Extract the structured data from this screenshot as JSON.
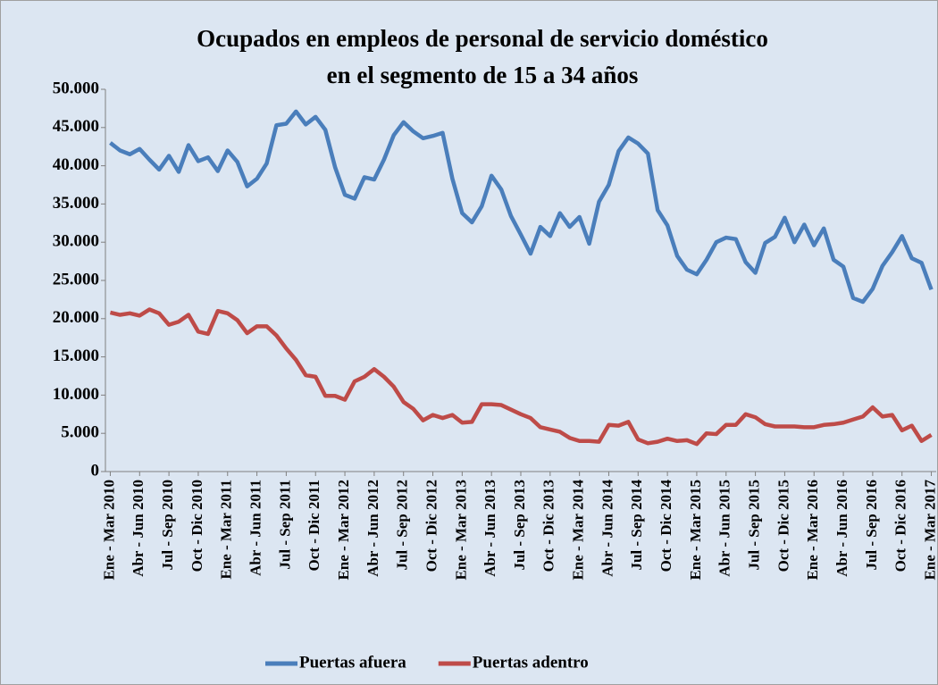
{
  "chart_data": {
    "type": "line",
    "title": [
      "Ocupados en empleos de personal de servicio doméstico",
      "en el segmento de 15 a 34 años"
    ],
    "categories": [
      "Ene - Mar 2010",
      null,
      null,
      "Abr - Jun 2010",
      null,
      null,
      "Jul - Sep 2010",
      null,
      null,
      "Oct - Dic 2010",
      null,
      null,
      "Ene - Mar 2011",
      null,
      null,
      "Abr - Jun 2011",
      null,
      null,
      "Jul - Sep 2011",
      null,
      null,
      "Oct - Dic 2011",
      null,
      null,
      "Ene - Mar 2012",
      null,
      null,
      "Abr - Jun 2012",
      null,
      null,
      "Jul - Sep 2012",
      null,
      null,
      "Oct - Dic 2012",
      null,
      null,
      "Ene - Mar 2013",
      null,
      null,
      "Abr - Jun 2013",
      null,
      null,
      "Jul - Sep 2013",
      null,
      null,
      "Oct - Dic 2013",
      null,
      null,
      "Ene - Mar 2014",
      null,
      null,
      "Abr - Jun 2014",
      null,
      null,
      "Jul - Sep 2014",
      null,
      null,
      "Oct - Dic 2014",
      null,
      null,
      "Ene - Mar 2015",
      null,
      null,
      "Abr - Jun 2015",
      null,
      null,
      "Jul - Sep 2015",
      null,
      null,
      "Oct - Dic 2015",
      null,
      null,
      "Ene - Mar 2016",
      null,
      null,
      "Abr - Jun 2016",
      null,
      null,
      "Jul - Sep 2016",
      null,
      null,
      "Oct - Dic 2016",
      null,
      null,
      "Ene - Mar 2017"
    ],
    "series": [
      {
        "name": "Puertas afuera",
        "color": "#4a7ebb",
        "values": [
          43000,
          42000,
          41500,
          42200,
          40800,
          39500,
          41300,
          39200,
          42700,
          40600,
          41100,
          39300,
          42000,
          40500,
          37300,
          38300,
          40300,
          45300,
          45500,
          47100,
          45400,
          46400,
          44700,
          39800,
          36200,
          35700,
          38500,
          38200,
          40800,
          44000,
          45700,
          44500,
          43600,
          43900,
          44300,
          38300,
          33800,
          32600,
          34700,
          38700,
          36900,
          33400,
          31000,
          28500,
          32000,
          30800,
          33800,
          32000,
          33300,
          29800,
          35300,
          37500,
          41900,
          43700,
          42900,
          41600,
          34200,
          32200,
          28200,
          26400,
          25800,
          27700,
          30000,
          30600,
          30400,
          27400,
          26000,
          29900,
          30700,
          33200,
          30000,
          32300,
          29600,
          31800,
          27700,
          26800,
          22700,
          22200,
          23900,
          26900,
          28700,
          30800,
          27900,
          27300,
          23800
        ]
      },
      {
        "name": "Puertas adentro",
        "color": "#be4b48",
        "values": [
          20800,
          20500,
          20700,
          20400,
          21200,
          20700,
          19200,
          19600,
          20500,
          18300,
          18000,
          21000,
          20700,
          19800,
          18100,
          19000,
          19000,
          17800,
          16100,
          14600,
          12600,
          12400,
          9900,
          9900,
          9400,
          11800,
          12400,
          13400,
          12400,
          11100,
          9100,
          8200,
          6700,
          7400,
          7000,
          7400,
          6400,
          6500,
          8800,
          8800,
          8700,
          8100,
          7500,
          7000,
          5800,
          5500,
          5200,
          4400,
          4000,
          4000,
          3900,
          6100,
          6000,
          6500,
          4200,
          3700,
          3900,
          4300,
          4000,
          4100,
          3600,
          5000,
          4900,
          6100,
          6100,
          7500,
          7100,
          6200,
          5900,
          5900,
          5900,
          5800,
          5800,
          6100,
          6200,
          6400,
          6800,
          7200,
          8400,
          7200,
          7400,
          5400,
          6000,
          4000,
          4800
        ]
      }
    ],
    "ylim": [
      0,
      50000
    ],
    "yticks": [
      0,
      {
        "value": 5000,
        "label": "5.000"
      },
      {
        "value": 10000,
        "label": "10.000"
      },
      {
        "value": 15000,
        "label": "15.000"
      },
      {
        "value": 20000,
        "label": "20.000"
      },
      {
        "value": 25000,
        "label": "25.000"
      },
      {
        "value": 30000,
        "label": "30.000"
      },
      {
        "value": 35000,
        "label": "35.000"
      },
      {
        "value": 40000,
        "label": "40.000"
      },
      {
        "value": 45000,
        "label": "45.000"
      },
      {
        "value": 50000,
        "label": "50.000"
      }
    ],
    "grid": false,
    "legend": "bottom"
  }
}
